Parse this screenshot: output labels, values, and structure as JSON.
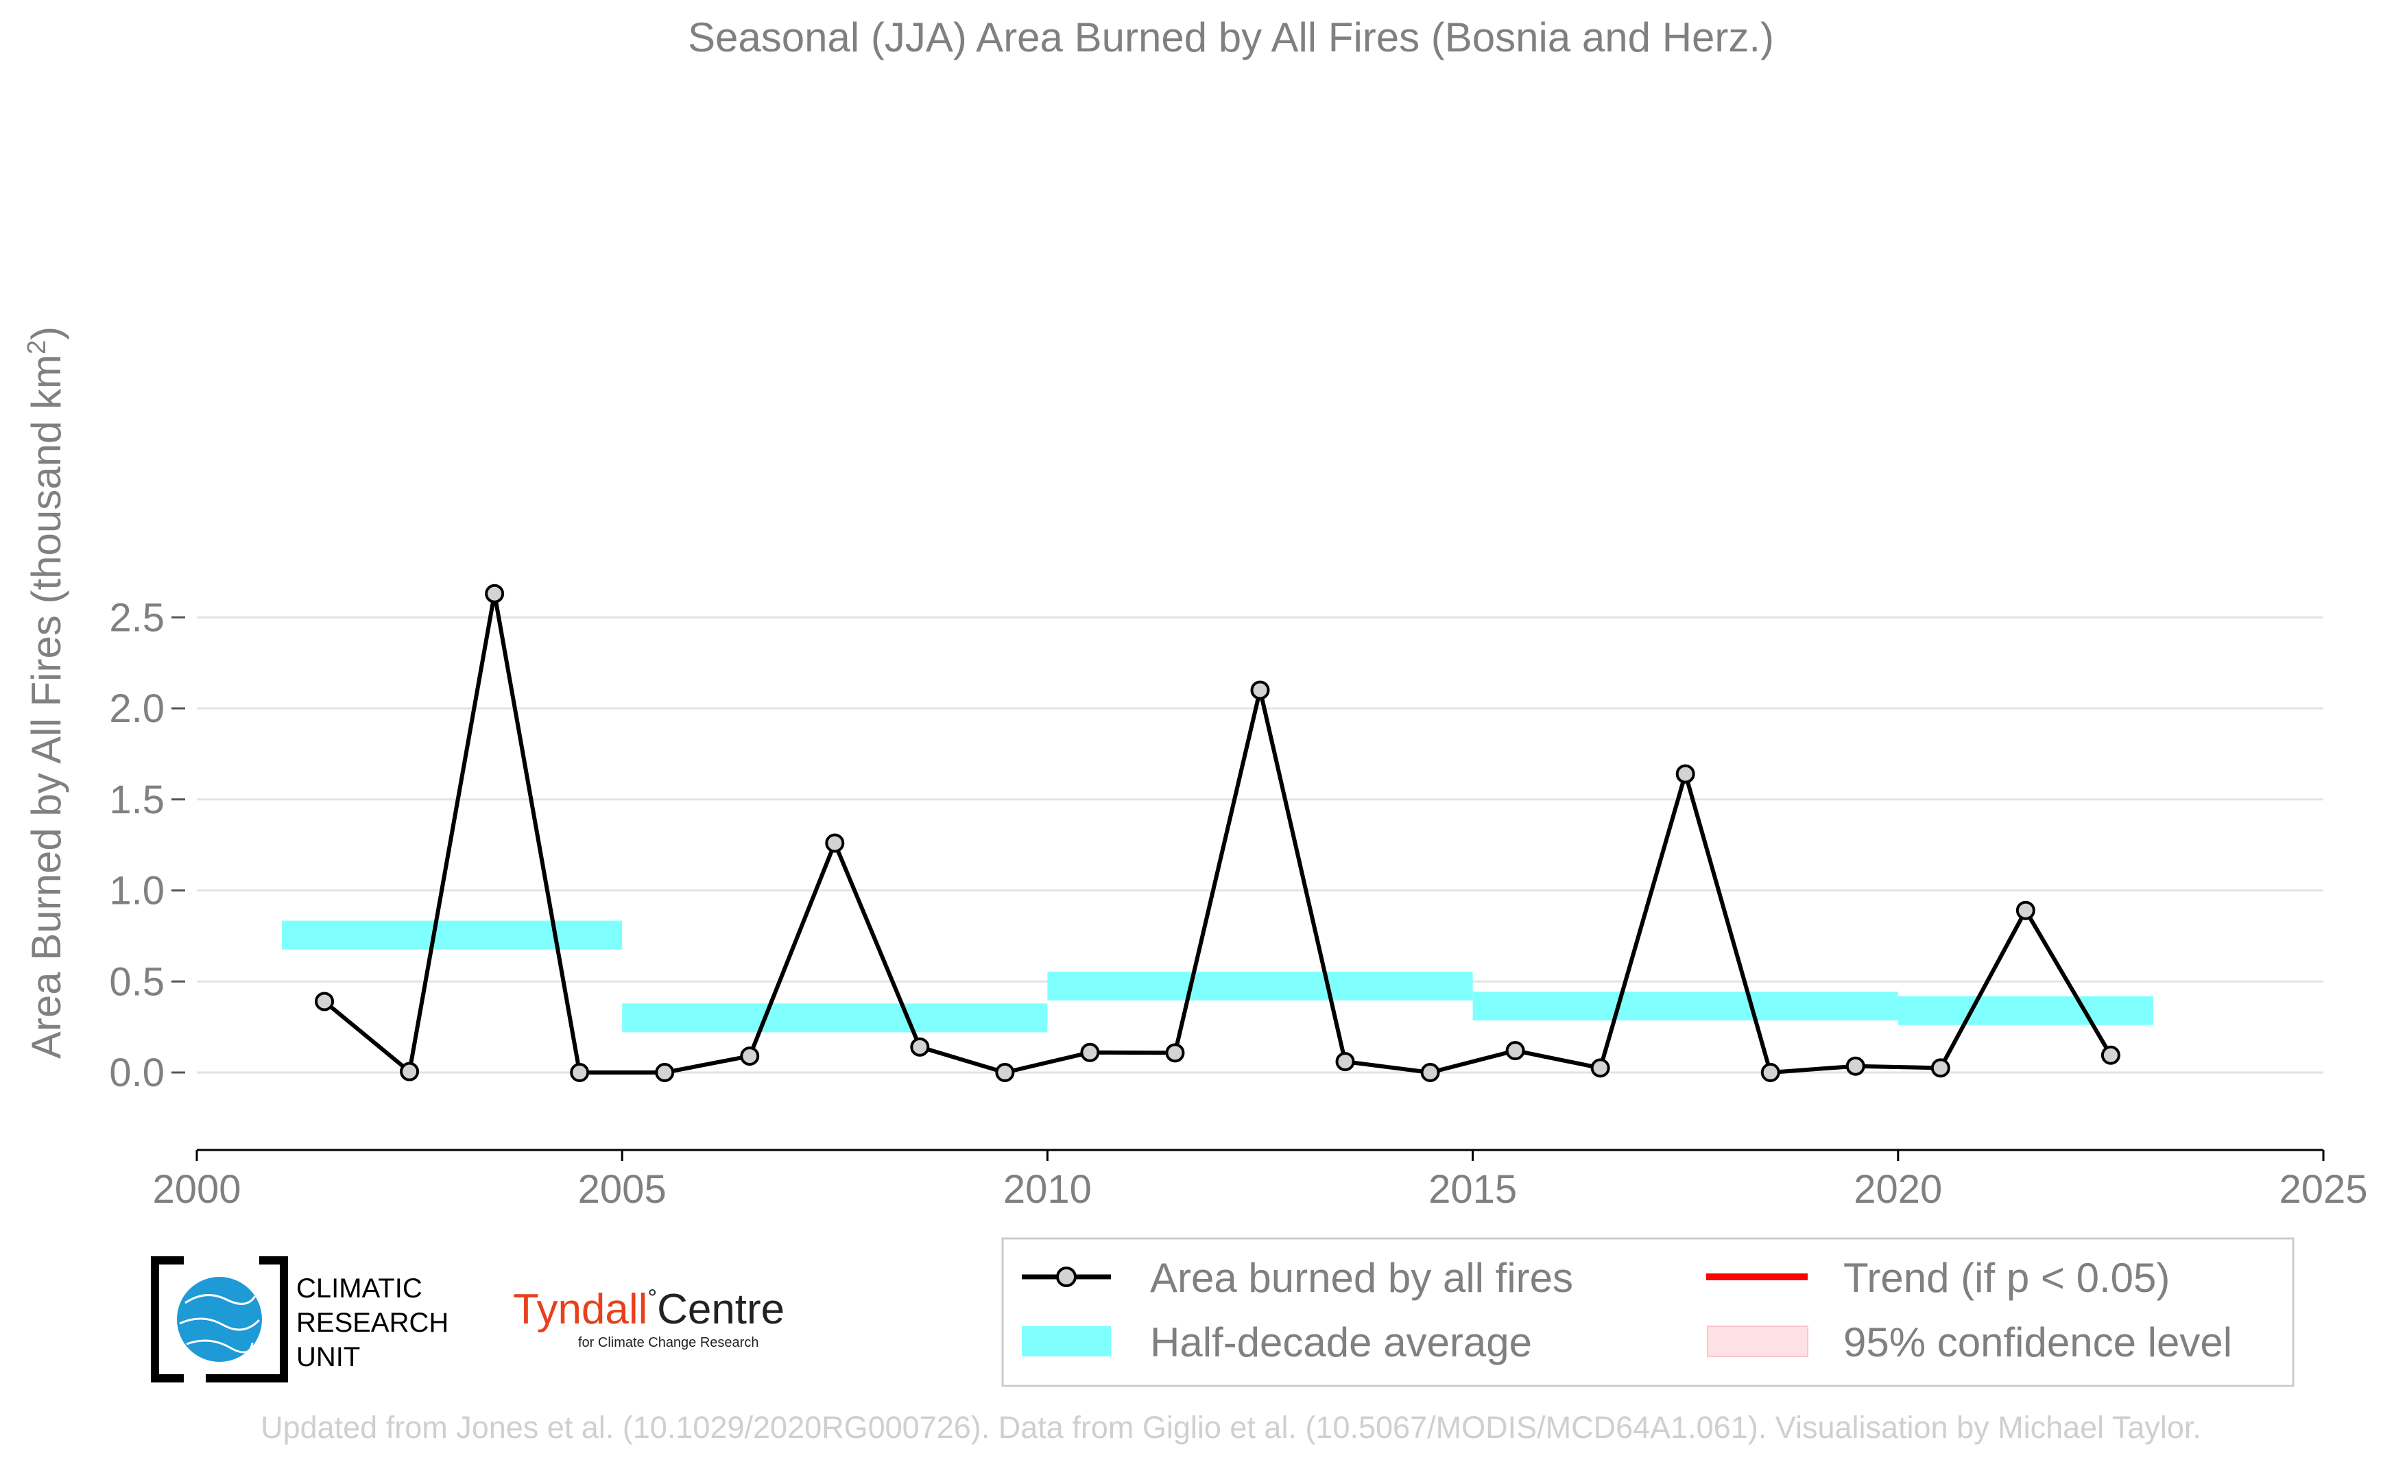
{
  "chart_data": {
    "type": "line",
    "title": "Seasonal (JJA) Area Burned by All Fires (Bosnia and Herz.)",
    "ylabel_main": "Area Burned by All Fires (thousand km",
    "ylabel_sup": "2",
    "ylabel_close": ")",
    "xlim": [
      2000,
      2025
    ],
    "ylim": [
      -0.21,
      2.75
    ],
    "xticks": [
      2000,
      2005,
      2010,
      2015,
      2020,
      2025
    ],
    "yticks": [
      0.0,
      0.5,
      1.0,
      1.5,
      2.0,
      2.5
    ],
    "ytick_labels": [
      "0.0",
      "0.5",
      "1.0",
      "1.5",
      "2.0",
      "2.5"
    ],
    "grid": "horizontal",
    "series": [
      {
        "name": "Area burned by all fires",
        "color": "#000000",
        "marker_fill": "#d3d3d3",
        "x": [
          2001.5,
          2002.5,
          2003.5,
          2004.5,
          2005.5,
          2006.5,
          2007.5,
          2008.5,
          2009.5,
          2010.5,
          2011.5,
          2012.5,
          2013.5,
          2014.5,
          2015.5,
          2016.5,
          2017.5,
          2018.5,
          2019.5,
          2020.5,
          2021.5,
          2022.5
        ],
        "y": [
          0.39,
          0.005,
          2.63,
          0.0,
          0.0,
          0.09,
          1.26,
          0.14,
          0.0,
          0.11,
          0.108,
          2.1,
          0.06,
          0.0,
          0.12,
          0.025,
          1.64,
          0.0,
          0.035,
          0.025,
          0.89,
          0.095
        ]
      }
    ],
    "half_decade_average": {
      "name": "Half-decade average",
      "color": "#80ffff",
      "segments": [
        {
          "x0": 2001,
          "x1": 2005,
          "y": 0.755
        },
        {
          "x0": 2005,
          "x1": 2010,
          "y": 0.3
        },
        {
          "x0": 2010,
          "x1": 2015,
          "y": 0.475
        },
        {
          "x0": 2015,
          "x1": 2020,
          "y": 0.365
        },
        {
          "x0": 2020,
          "x1": 2023,
          "y": 0.34
        }
      ]
    },
    "legend": {
      "placement": "bottom-right",
      "entries": [
        {
          "label": "Area burned by all fires",
          "kind": "line-marker",
          "color": "#000000"
        },
        {
          "label": "Trend (if p < 0.05)",
          "kind": "line",
          "color": "#ff0000"
        },
        {
          "label": "Half-decade average",
          "kind": "band",
          "color": "#80ffff"
        },
        {
          "label": "95% confidence level",
          "kind": "patch",
          "color": "#ffe0e4"
        }
      ]
    }
  },
  "logos": {
    "cru_lines": [
      "CLIMATIC",
      "RESEARCH",
      "UNIT"
    ],
    "tyndall_name_part1": "Tyndall",
    "tyndall_degree": "°",
    "tyndall_name_part2": "Centre",
    "tyndall_tagline": "for Climate Change Research",
    "tyndall_color": "#e8401c",
    "cru_globe_color": "#1e9ad6"
  },
  "credit": "Updated from Jones et al. (10.1029/2020RG000726). Data from Giglio et al. (10.5067/MODIS/MCD64A1.061). Visualisation by Michael Taylor."
}
